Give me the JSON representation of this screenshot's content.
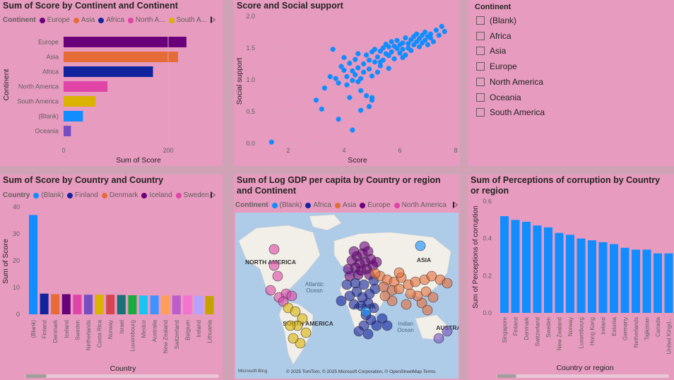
{
  "tiles": {
    "continent_bar": {
      "title": "Sum of Score by Continent and Continent",
      "legend_title": "Continent",
      "legend": [
        {
          "label": "Europe",
          "color": "#6b007b"
        },
        {
          "label": "Asia",
          "color": "#e66c37"
        },
        {
          "label": "Africa",
          "color": "#12239e"
        },
        {
          "label": "North A...",
          "color": "#e044a7"
        },
        {
          "label": "South A...",
          "color": "#d9b300"
        }
      ],
      "ylabel": "Continent",
      "xlabel": "Sum of Score",
      "xticks": [
        "0",
        "200"
      ]
    },
    "scatter": {
      "title": "Score and Social support",
      "xlabel": "Score",
      "ylabel": "Social support",
      "xticks": [
        "2",
        "4",
        "6",
        "8"
      ],
      "yticks": [
        "0.0",
        "0.5",
        "1.0",
        "1.5",
        "2.0"
      ]
    },
    "slicer": {
      "title": "Continent",
      "items": [
        "(Blank)",
        "Africa",
        "Asia",
        "Europe",
        "North America",
        "Oceania",
        "South America"
      ]
    },
    "country_bar": {
      "title": "Sum of Score by Country and Country",
      "legend_title": "Country",
      "legend": [
        {
          "label": "(Blank)",
          "color": "#118dff"
        },
        {
          "label": "Finland",
          "color": "#12239e"
        },
        {
          "label": "Denmark",
          "color": "#e66c37"
        },
        {
          "label": "Iceland",
          "color": "#6b007b"
        },
        {
          "label": "Sweden",
          "color": "#e044a7"
        }
      ],
      "ylabel": "Sum of Score",
      "xlabel": "Country",
      "yticks": [
        "0",
        "10",
        "20",
        "30",
        "40"
      ]
    },
    "map": {
      "title": "Sum of Log GDP per capita by Country or region and Continent",
      "legend_title": "Continent",
      "legend": [
        {
          "label": "(Blank)",
          "color": "#118dff"
        },
        {
          "label": "Africa",
          "color": "#12239e"
        },
        {
          "label": "Asia",
          "color": "#e66c37"
        },
        {
          "label": "Europe",
          "color": "#6b007b"
        },
        {
          "label": "North America",
          "color": "#e044a7"
        }
      ],
      "labels": {
        "north_america": "NORTH AMERICA",
        "south_america": "SOUTH AMERICA",
        "asia": "ASIA",
        "africa": "AFRICA",
        "australia": "AUSTRA",
        "atlantic": "Atlantic",
        "atlantic2": "Ocean",
        "indian": "Indian",
        "indian2": "Ocean"
      },
      "bing": "Microsoft Bing",
      "credit": "© 2025 TomTom, © 2025 Microsoft Corporation, © OpenStreetMap  Terms"
    },
    "corruption_bar": {
      "title": "Sum of Perceptions of corruption by Country or region",
      "ylabel": "Sum of Perceptions of corruption",
      "xlabel": "Country or region",
      "yticks": [
        "0.0",
        "0.2",
        "0.4",
        "0.6"
      ]
    }
  },
  "chart_data": [
    {
      "type": "bar",
      "orientation": "horizontal",
      "title": "Sum of Score by Continent and Continent",
      "categories": [
        "Europe",
        "Asia",
        "Africa",
        "North America",
        "South America",
        "(Blank)",
        "Oceania"
      ],
      "values": [
        235,
        219,
        171,
        84,
        61,
        37,
        14
      ],
      "colors": [
        "#6b007b",
        "#e66c37",
        "#12239e",
        "#e044a7",
        "#d9b300",
        "#118dff",
        "#744ec2"
      ],
      "tick_labels": [
        "Europe",
        "Asia",
        "Africa",
        "North America",
        "South America",
        "(Blank)",
        "Oceania"
      ],
      "xlabel": "Sum of Score",
      "ylabel": "Continent",
      "xlim": [
        0,
        250
      ]
    },
    {
      "type": "scatter",
      "title": "Score and Social support",
      "xlabel": "Score",
      "ylabel": "Social support",
      "xlim": [
        1.5,
        8
      ],
      "ylim": [
        0,
        2
      ],
      "x": [
        1.4,
        3.0,
        3.2,
        3.3,
        3.5,
        3.6,
        3.7,
        3.8,
        3.9,
        4.0,
        4.0,
        4.1,
        4.1,
        4.2,
        4.2,
        4.3,
        4.3,
        4.4,
        4.4,
        4.5,
        4.5,
        4.5,
        4.6,
        4.6,
        4.7,
        4.7,
        4.8,
        4.8,
        4.9,
        4.9,
        5.0,
        5.0,
        5.0,
        5.1,
        5.1,
        5.2,
        5.2,
        5.3,
        5.3,
        5.4,
        5.4,
        5.5,
        5.5,
        5.6,
        5.6,
        5.7,
        5.7,
        5.8,
        5.8,
        5.9,
        5.9,
        6.0,
        6.0,
        6.1,
        6.1,
        6.2,
        6.2,
        6.3,
        6.3,
        6.4,
        6.4,
        6.5,
        6.5,
        6.6,
        6.6,
        6.7,
        6.7,
        6.8,
        6.8,
        6.9,
        6.9,
        7.0,
        7.0,
        7.1,
        7.1,
        7.2,
        7.3,
        7.4,
        7.5,
        7.6,
        5.0,
        4.6,
        3.8,
        4.3,
        5.6,
        6.1,
        4.9,
        5.3
      ],
      "y": [
        0.02,
        0.68,
        0.54,
        0.87,
        1.05,
        1.48,
        1.02,
        0.95,
        1.21,
        1.15,
        1.35,
        0.92,
        1.05,
        0.72,
        1.26,
        0.99,
        1.14,
        1.08,
        1.32,
        0.97,
        1.19,
        1.41,
        1.02,
        0.83,
        1.25,
        1.12,
        1.39,
        0.75,
        1.17,
        1.31,
        0.68,
        1.44,
        1.06,
        1.28,
        1.48,
        1.12,
        1.36,
        1.45,
        1.22,
        1.5,
        1.31,
        1.56,
        1.41,
        1.38,
        1.52,
        1.6,
        1.44,
        1.53,
        1.33,
        1.49,
        1.62,
        1.55,
        1.42,
        1.58,
        1.48,
        1.66,
        1.39,
        1.57,
        1.5,
        1.63,
        1.46,
        1.68,
        1.55,
        1.6,
        1.72,
        1.52,
        1.65,
        1.58,
        1.7,
        1.62,
        1.75,
        1.55,
        1.68,
        1.66,
        1.72,
        1.6,
        1.78,
        1.7,
        1.84,
        1.76,
        0.72,
        0.52,
        0.38,
        0.21,
        1.18,
        1.35,
        0.58,
        1.28
      ]
    },
    {
      "type": "bar",
      "title": "Sum of Score by Country and Country",
      "categories": [
        "(Blank)",
        "Finland",
        "Denmark",
        "Iceland",
        "Sweden",
        "Netherlands",
        "Costa Rica",
        "Norway",
        "Israel",
        "Luxembourg",
        "Mexico",
        "Australia",
        "New Zealand",
        "Switzerland",
        "Belgium",
        "Ireland",
        "Lithuania"
      ],
      "values": [
        37.0,
        7.7,
        7.5,
        7.5,
        7.3,
        7.3,
        7.3,
        7.3,
        7.2,
        7.1,
        7.0,
        7.0,
        7.0,
        7.0,
        7.0,
        6.9,
        6.8
      ],
      "colors": [
        "#118dff",
        "#12239e",
        "#e66c37",
        "#6b007b",
        "#e044a7",
        "#744ec2",
        "#d9b300",
        "#d64550",
        "#197278",
        "#1aab40",
        "#15c6f4",
        "#4092ff",
        "#ffa058",
        "#be5dc9",
        "#f472d0",
        "#b5a1ff",
        "#c4a200"
      ],
      "ylabel": "Sum of Score",
      "xlabel": "Country",
      "ylim": [
        0,
        40
      ]
    },
    {
      "type": "bar",
      "title": "Sum of Perceptions of corruption by Country or region",
      "categories": [
        "Singapore",
        "Finland",
        "Denmark",
        "Switzerland",
        "Sweden",
        "New Zealand",
        "Norway",
        "Luxembourg",
        "Hong Kong",
        "Ireland",
        "Estonia",
        "Germany",
        "Netherlands",
        "Tajikistan",
        "Canada",
        "United Kingd..."
      ],
      "values": [
        0.52,
        0.5,
        0.49,
        0.47,
        0.46,
        0.43,
        0.42,
        0.4,
        0.39,
        0.38,
        0.37,
        0.35,
        0.34,
        0.34,
        0.32,
        0.32
      ],
      "color": "#118dff",
      "ylabel": "Sum of Perceptions of corruption",
      "xlabel": "Country or region",
      "ylim": [
        0,
        0.6
      ]
    }
  ]
}
